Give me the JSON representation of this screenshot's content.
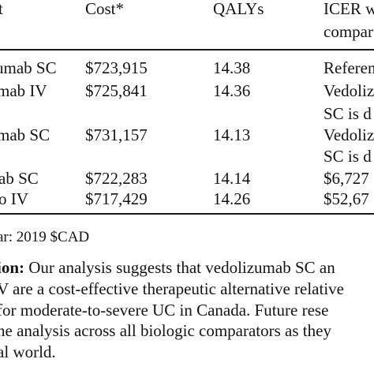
{
  "table": {
    "headers": {
      "strategy": "t",
      "cost": "Cost*",
      "qalys": "QALYs",
      "icer_line1": "ICER w",
      "icer_line2": "compar"
    },
    "rows": [
      {
        "strategy": "umab SC",
        "cost": "$723,915",
        "qalys": "14.38",
        "icer_line1": "Referen",
        "icer_line2": ""
      },
      {
        "strategy": "mab IV",
        "cost": "$725,841",
        "qalys": "14.36",
        "icer_line1": "Vedoliz",
        "icer_line2": "SC is d"
      },
      {
        "strategy": "mab SC",
        "cost": "$731,157",
        "qalys": "14.13",
        "icer_line1": "Vedoliz",
        "icer_line2": "SC is d"
      },
      {
        "strategy": "ab SC",
        "cost": "$722,283",
        "qalys": "14.14",
        "icer_line1": "$6,727",
        "icer_line2": ""
      },
      {
        "strategy": "o IV",
        "cost": "$717,429",
        "qalys": "14.26",
        "icer_line1": "$52,67",
        "icer_line2": ""
      }
    ]
  },
  "footnote": "ar: 2019 $CAD",
  "conclusion": {
    "label": "ion:",
    "line1_rest": " Our analysis suggests that vedolizumab SC an",
    "line2": "V are a cost-effective therapeutic alternative relative",
    "line3": " for moderate-to-severe UC in Canada. Future rese",
    "line4": "he analysis across all biologic comparators as they",
    "line5": "al world."
  }
}
